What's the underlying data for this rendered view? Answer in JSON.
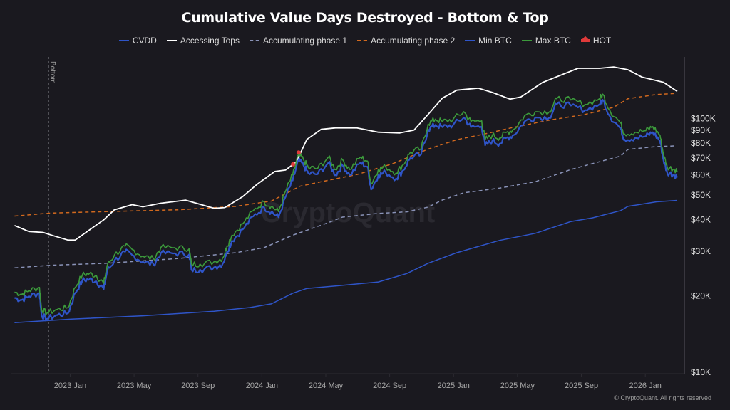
{
  "chart_data": {
    "type": "line",
    "title": "Cumulative Value Days Destroyed - Bottom & Top",
    "xlabel": "",
    "ylabel": "",
    "yscale": "log",
    "ylim": [
      10000,
      175000
    ],
    "x_unit": "months since 2023 Jan",
    "xlim": [
      -3.5,
      38.0
    ],
    "x_ticks": [
      {
        "label": "2023 Jan",
        "value": 0
      },
      {
        "label": "2023 May",
        "value": 4
      },
      {
        "label": "2023 Sep",
        "value": 8
      },
      {
        "label": "2024 Jan",
        "value": 12
      },
      {
        "label": "2024 May",
        "value": 16
      },
      {
        "label": "2024 Sep",
        "value": 20
      },
      {
        "label": "2025 Jan",
        "value": 24
      },
      {
        "label": "2025 May",
        "value": 28
      },
      {
        "label": "2025 Sep",
        "value": 32
      },
      {
        "label": "2026 Jan",
        "value": 36
      }
    ],
    "y_ticks": [
      {
        "label": "$100K",
        "value": 100000
      },
      {
        "label": "$90K",
        "value": 90000
      },
      {
        "label": "$80K",
        "value": 80000
      },
      {
        "label": "$70K",
        "value": 70000
      },
      {
        "label": "$60K",
        "value": 60000
      },
      {
        "label": "$50K",
        "value": 50000
      },
      {
        "label": "$40K",
        "value": 40000
      },
      {
        "label": "$30K",
        "value": 30000
      },
      {
        "label": "$20K",
        "value": 20000
      },
      {
        "label": "$10K",
        "value": 10000
      }
    ],
    "legend_position": "top-center",
    "grid": false,
    "annotations": [
      {
        "type": "vertical-line",
        "label": "Bottom",
        "x": -1.35
      }
    ],
    "series": [
      {
        "name": "CVDD",
        "color": "#2f55c9",
        "style": "solid",
        "points": [
          [
            -3.48,
            15700
          ],
          [
            0.08,
            16200
          ],
          [
            4.55,
            16700
          ],
          [
            9.01,
            17400
          ],
          [
            11.25,
            18000
          ],
          [
            12.59,
            18600
          ],
          [
            13.93,
            20500
          ],
          [
            14.82,
            21400
          ],
          [
            16.61,
            21900
          ],
          [
            19.29,
            22700
          ],
          [
            21.07,
            24500
          ],
          [
            22.41,
            26900
          ],
          [
            24.2,
            29600
          ],
          [
            26.88,
            33100
          ],
          [
            29.11,
            35300
          ],
          [
            31.34,
            39300
          ],
          [
            32.68,
            40600
          ],
          [
            34.46,
            43400
          ],
          [
            34.91,
            45100
          ],
          [
            36.7,
            47000
          ],
          [
            38.0,
            47600
          ]
        ]
      },
      {
        "name": "Accessing Tops",
        "color": "#ffffff",
        "style": "solid",
        "points": [
          [
            -3.48,
            37900
          ],
          [
            -2.59,
            35900
          ],
          [
            -1.7,
            35600
          ],
          [
            -1.03,
            34500
          ],
          [
            -0.13,
            33200
          ],
          [
            0.31,
            33200
          ],
          [
            2.1,
            39900
          ],
          [
            2.77,
            43700
          ],
          [
            3.88,
            45800
          ],
          [
            4.55,
            44900
          ],
          [
            5.67,
            46400
          ],
          [
            7.23,
            47700
          ],
          [
            9.01,
            44300
          ],
          [
            9.68,
            44600
          ],
          [
            10.79,
            49200
          ],
          [
            11.69,
            55000
          ],
          [
            12.81,
            61900
          ],
          [
            13.48,
            62700
          ],
          [
            14.15,
            67400
          ],
          [
            14.82,
            82800
          ],
          [
            15.71,
            90700
          ],
          [
            16.61,
            91900
          ],
          [
            17.95,
            91900
          ],
          [
            19.29,
            88400
          ],
          [
            20.63,
            87800
          ],
          [
            21.52,
            90100
          ],
          [
            22.41,
            103900
          ],
          [
            23.3,
            120500
          ],
          [
            24.2,
            129400
          ],
          [
            25.54,
            131900
          ],
          [
            26.43,
            126800
          ],
          [
            27.54,
            119300
          ],
          [
            28.21,
            121700
          ],
          [
            29.55,
            138600
          ],
          [
            30.45,
            146100
          ],
          [
            31.79,
            157800
          ],
          [
            33.13,
            157800
          ],
          [
            34.02,
            159800
          ],
          [
            34.91,
            155800
          ],
          [
            35.8,
            145700
          ],
          [
            37.14,
            139000
          ],
          [
            38.0,
            128000
          ]
        ]
      },
      {
        "name": "Accumulating phase 1",
        "color": "#8a93b8",
        "style": "dashed",
        "points": [
          [
            -3.48,
            25800
          ],
          [
            -1.25,
            26400
          ],
          [
            2.32,
            26900
          ],
          [
            6.79,
            28100
          ],
          [
            10.36,
            29600
          ],
          [
            12.14,
            31000
          ],
          [
            13.93,
            34700
          ],
          [
            16.16,
            38900
          ],
          [
            17.05,
            40900
          ],
          [
            19.29,
            42300
          ],
          [
            21.07,
            42900
          ],
          [
            22.41,
            44800
          ],
          [
            23.3,
            47800
          ],
          [
            24.64,
            51000
          ],
          [
            26.88,
            53200
          ],
          [
            29.11,
            56400
          ],
          [
            31.34,
            63000
          ],
          [
            33.13,
            67600
          ],
          [
            34.46,
            71200
          ],
          [
            34.91,
            75600
          ],
          [
            36.7,
            77600
          ],
          [
            38.0,
            78100
          ]
        ]
      },
      {
        "name": "Accumulating phase 2",
        "color": "#d2691e",
        "style": "dashed",
        "points": [
          [
            -3.48,
            41300
          ],
          [
            -1.25,
            42400
          ],
          [
            2.32,
            43000
          ],
          [
            6.79,
            43700
          ],
          [
            10.36,
            45100
          ],
          [
            12.59,
            47300
          ],
          [
            14.37,
            54100
          ],
          [
            15.71,
            56400
          ],
          [
            17.95,
            60200
          ],
          [
            20.18,
            66400
          ],
          [
            22.41,
            75800
          ],
          [
            24.2,
            82600
          ],
          [
            25.98,
            87100
          ],
          [
            27.77,
            92400
          ],
          [
            30.0,
            98600
          ],
          [
            32.23,
            103900
          ],
          [
            34.02,
            110800
          ],
          [
            34.91,
            119800
          ],
          [
            36.7,
            124500
          ],
          [
            38.0,
            125800
          ]
        ]
      },
      {
        "name": "Max BTC",
        "color": "#3c9a3c",
        "style": "solid",
        "points": [
          [
            -3.48,
            20700
          ],
          [
            -3.04,
            20300
          ],
          [
            -2.59,
            21000
          ],
          [
            -1.92,
            21600
          ],
          [
            -1.79,
            17700
          ],
          [
            -1.47,
            17100
          ],
          [
            -0.8,
            17700
          ],
          [
            -0.13,
            18000
          ],
          [
            0.31,
            21600
          ],
          [
            0.76,
            24200
          ],
          [
            1.21,
            24500
          ],
          [
            1.65,
            24000
          ],
          [
            2.1,
            22400
          ],
          [
            2.32,
            26400
          ],
          [
            2.77,
            29000
          ],
          [
            3.44,
            31400
          ],
          [
            3.88,
            30500
          ],
          [
            4.55,
            28700
          ],
          [
            5.22,
            28000
          ],
          [
            5.67,
            31000
          ],
          [
            6.56,
            31000
          ],
          [
            7.45,
            30700
          ],
          [
            7.59,
            26700
          ],
          [
            8.13,
            26700
          ],
          [
            9.01,
            27300
          ],
          [
            9.55,
            28200
          ],
          [
            9.82,
            31500
          ],
          [
            10.13,
            34700
          ],
          [
            10.8,
            38500
          ],
          [
            11.47,
            43400
          ],
          [
            12.14,
            47000
          ],
          [
            12.59,
            45100
          ],
          [
            13.04,
            43000
          ],
          [
            13.48,
            51700
          ],
          [
            13.93,
            60000
          ],
          [
            14.29,
            72200
          ],
          [
            14.6,
            69000
          ],
          [
            14.91,
            64000
          ],
          [
            15.49,
            63600
          ],
          [
            16.16,
            70500
          ],
          [
            16.61,
            63000
          ],
          [
            17.05,
            68900
          ],
          [
            17.5,
            63000
          ],
          [
            18.17,
            70500
          ],
          [
            18.61,
            68000
          ],
          [
            18.84,
            55300
          ],
          [
            19.29,
            63000
          ],
          [
            19.74,
            64700
          ],
          [
            20.41,
            61100
          ],
          [
            20.85,
            65900
          ],
          [
            21.3,
            73800
          ],
          [
            21.97,
            76100
          ],
          [
            22.41,
            95300
          ],
          [
            22.86,
            99400
          ],
          [
            23.3,
            97400
          ],
          [
            23.97,
            99400
          ],
          [
            24.64,
            106400
          ],
          [
            25.09,
            97400
          ],
          [
            25.76,
            98000
          ],
          [
            25.98,
            82600
          ],
          [
            26.43,
            86100
          ],
          [
            26.88,
            83800
          ],
          [
            27.32,
            88400
          ],
          [
            27.77,
            90700
          ],
          [
            28.44,
            102600
          ],
          [
            29.11,
            106400
          ],
          [
            30.0,
            106400
          ],
          [
            30.45,
            119800
          ],
          [
            31.34,
            118400
          ],
          [
            32.23,
            113700
          ],
          [
            33.13,
            119800
          ],
          [
            33.35,
            124500
          ],
          [
            33.8,
            107100
          ],
          [
            34.46,
            96000
          ],
          [
            34.69,
            87100
          ],
          [
            35.36,
            88400
          ],
          [
            36.03,
            89600
          ],
          [
            36.47,
            93000
          ],
          [
            36.92,
            86100
          ],
          [
            37.14,
            72200
          ],
          [
            37.37,
            64400
          ],
          [
            37.81,
            63200
          ],
          [
            38.0,
            62400
          ]
        ]
      },
      {
        "name": "Min BTC",
        "color": "#2f55c9",
        "style": "solid",
        "offset_ratio": 0.95
      },
      {
        "name": "HOT",
        "color": "#e03a3a",
        "style": "marker",
        "points": [
          [
            13.95,
            66000
          ],
          [
            14.3,
            73500
          ]
        ]
      }
    ]
  },
  "legend": [
    {
      "label": "CVDD",
      "color": "#2f55c9",
      "style": "solid"
    },
    {
      "label": "Accessing Tops",
      "color": "#ffffff",
      "style": "solid"
    },
    {
      "label": "Accumulating phase 1",
      "color": "#8a93b8",
      "style": "dashed"
    },
    {
      "label": "Accumulating phase 2",
      "color": "#d2691e",
      "style": "dashed"
    },
    {
      "label": "Min BTC",
      "color": "#2f55c9",
      "style": "solid"
    },
    {
      "label": "Max BTC",
      "color": "#3c9a3c",
      "style": "solid"
    },
    {
      "label": "HOT",
      "color": "#e03a3a",
      "style": "hot"
    }
  ],
  "watermark": "CryptoQuant",
  "copyright": "© CryptoQuant. All rights reserved"
}
